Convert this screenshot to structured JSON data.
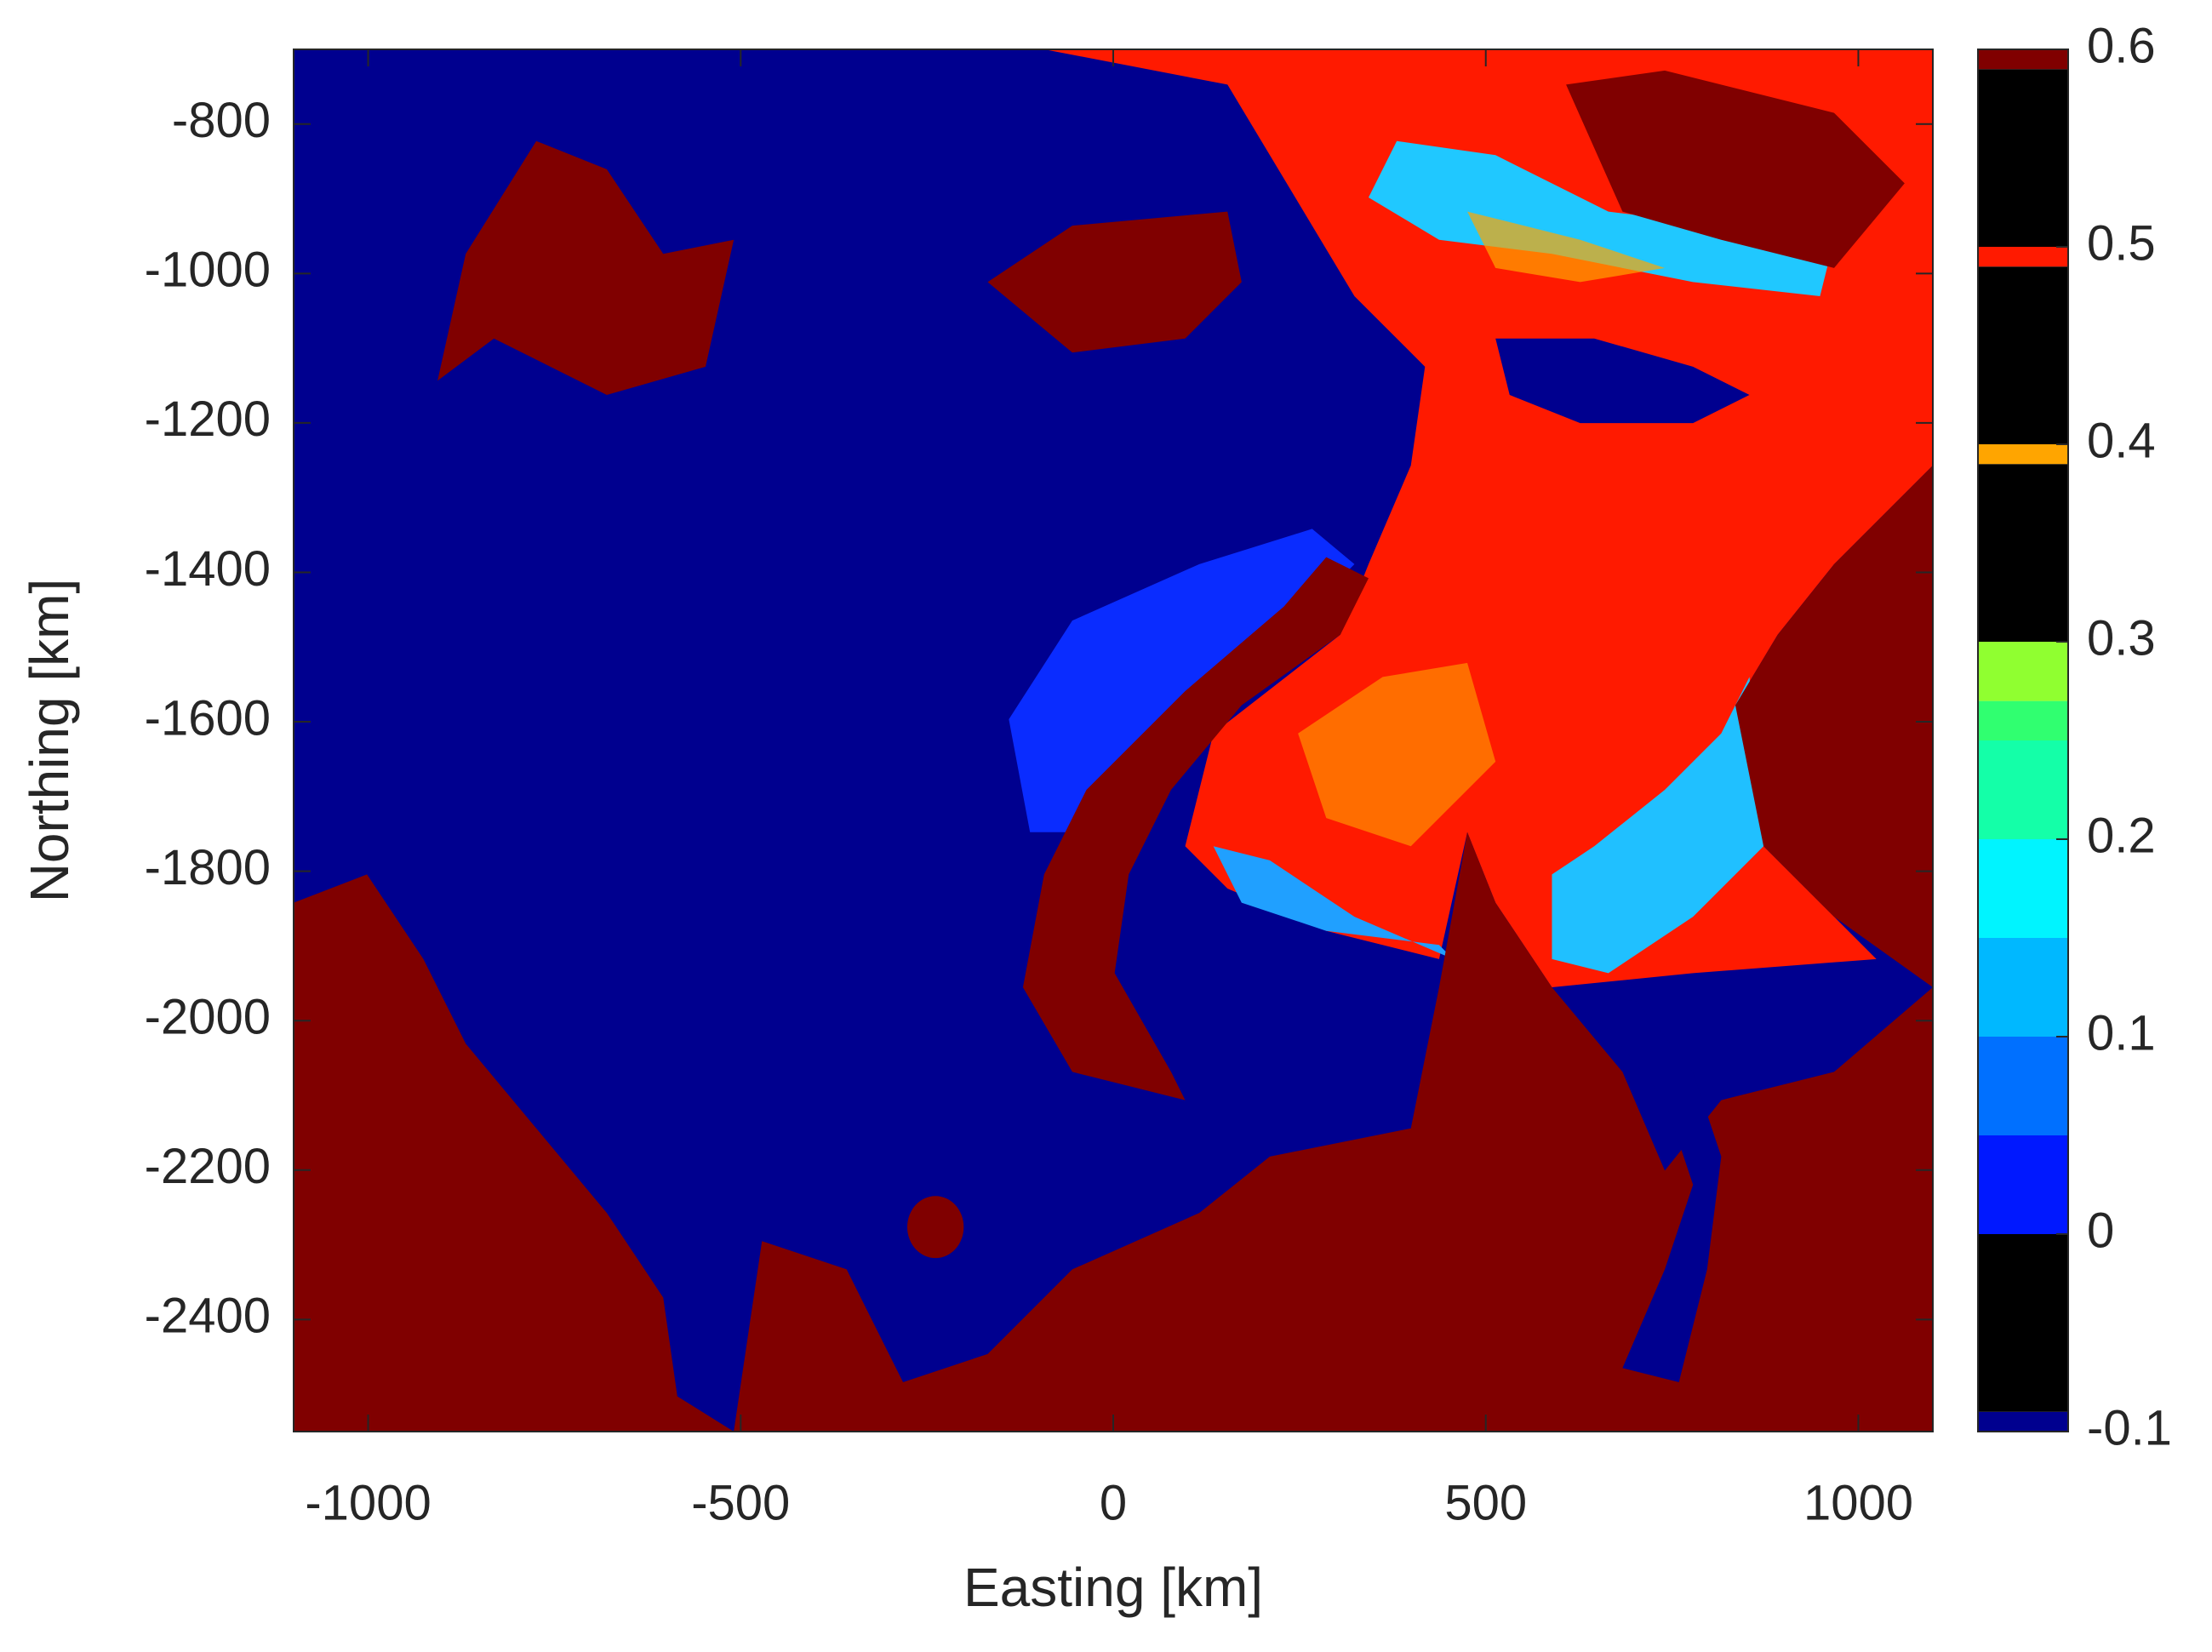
{
  "chart_data": {
    "type": "map",
    "x_label": "Easting [km]",
    "y_label": "Northing [km]",
    "xlim": [
      -1100,
      1100
    ],
    "xticks": [
      -1000,
      -500,
      0,
      500,
      1000
    ],
    "ylim": [
      -2550,
      -700
    ],
    "yticks": [
      -800,
      -1000,
      -1200,
      -1400,
      -1600,
      -1800,
      -2000,
      -2200,
      -2400
    ],
    "colorbar": {
      "clim": [
        -0.1,
        0.6
      ],
      "ticks": [
        -0.1,
        0,
        0.1,
        0.2,
        0.3,
        0.4,
        0.5,
        0.6
      ],
      "segments": [
        {
          "range": [
            -0.1,
            -0.09
          ],
          "color": "#00008f"
        },
        {
          "range": [
            -0.09,
            0
          ],
          "color": "#000000"
        },
        {
          "range": [
            0,
            0.05
          ],
          "color": "#0018ff"
        },
        {
          "range": [
            0.05,
            0.1
          ],
          "color": "#0070ff"
        },
        {
          "range": [
            0.1,
            0.15
          ],
          "color": "#00b8ff"
        },
        {
          "range": [
            0.15,
            0.2
          ],
          "color": "#00f4ff"
        },
        {
          "range": [
            0.2,
            0.25
          ],
          "color": "#14ffa8"
        },
        {
          "range": [
            0.25,
            0.27
          ],
          "color": "#30ff70"
        },
        {
          "range": [
            0.27,
            0.3
          ],
          "color": "#90ff30"
        },
        {
          "range": [
            0.3,
            0.39
          ],
          "color": "#000000"
        },
        {
          "range": [
            0.39,
            0.4
          ],
          "color": "#ffa500"
        },
        {
          "range": [
            0.4,
            0.49
          ],
          "color": "#000000"
        },
        {
          "range": [
            0.49,
            0.5
          ],
          "color": "#ff1a00"
        },
        {
          "range": [
            0.5,
            0.59
          ],
          "color": "#000000"
        },
        {
          "range": [
            0.59,
            0.6
          ],
          "color": "#800000"
        }
      ]
    }
  }
}
